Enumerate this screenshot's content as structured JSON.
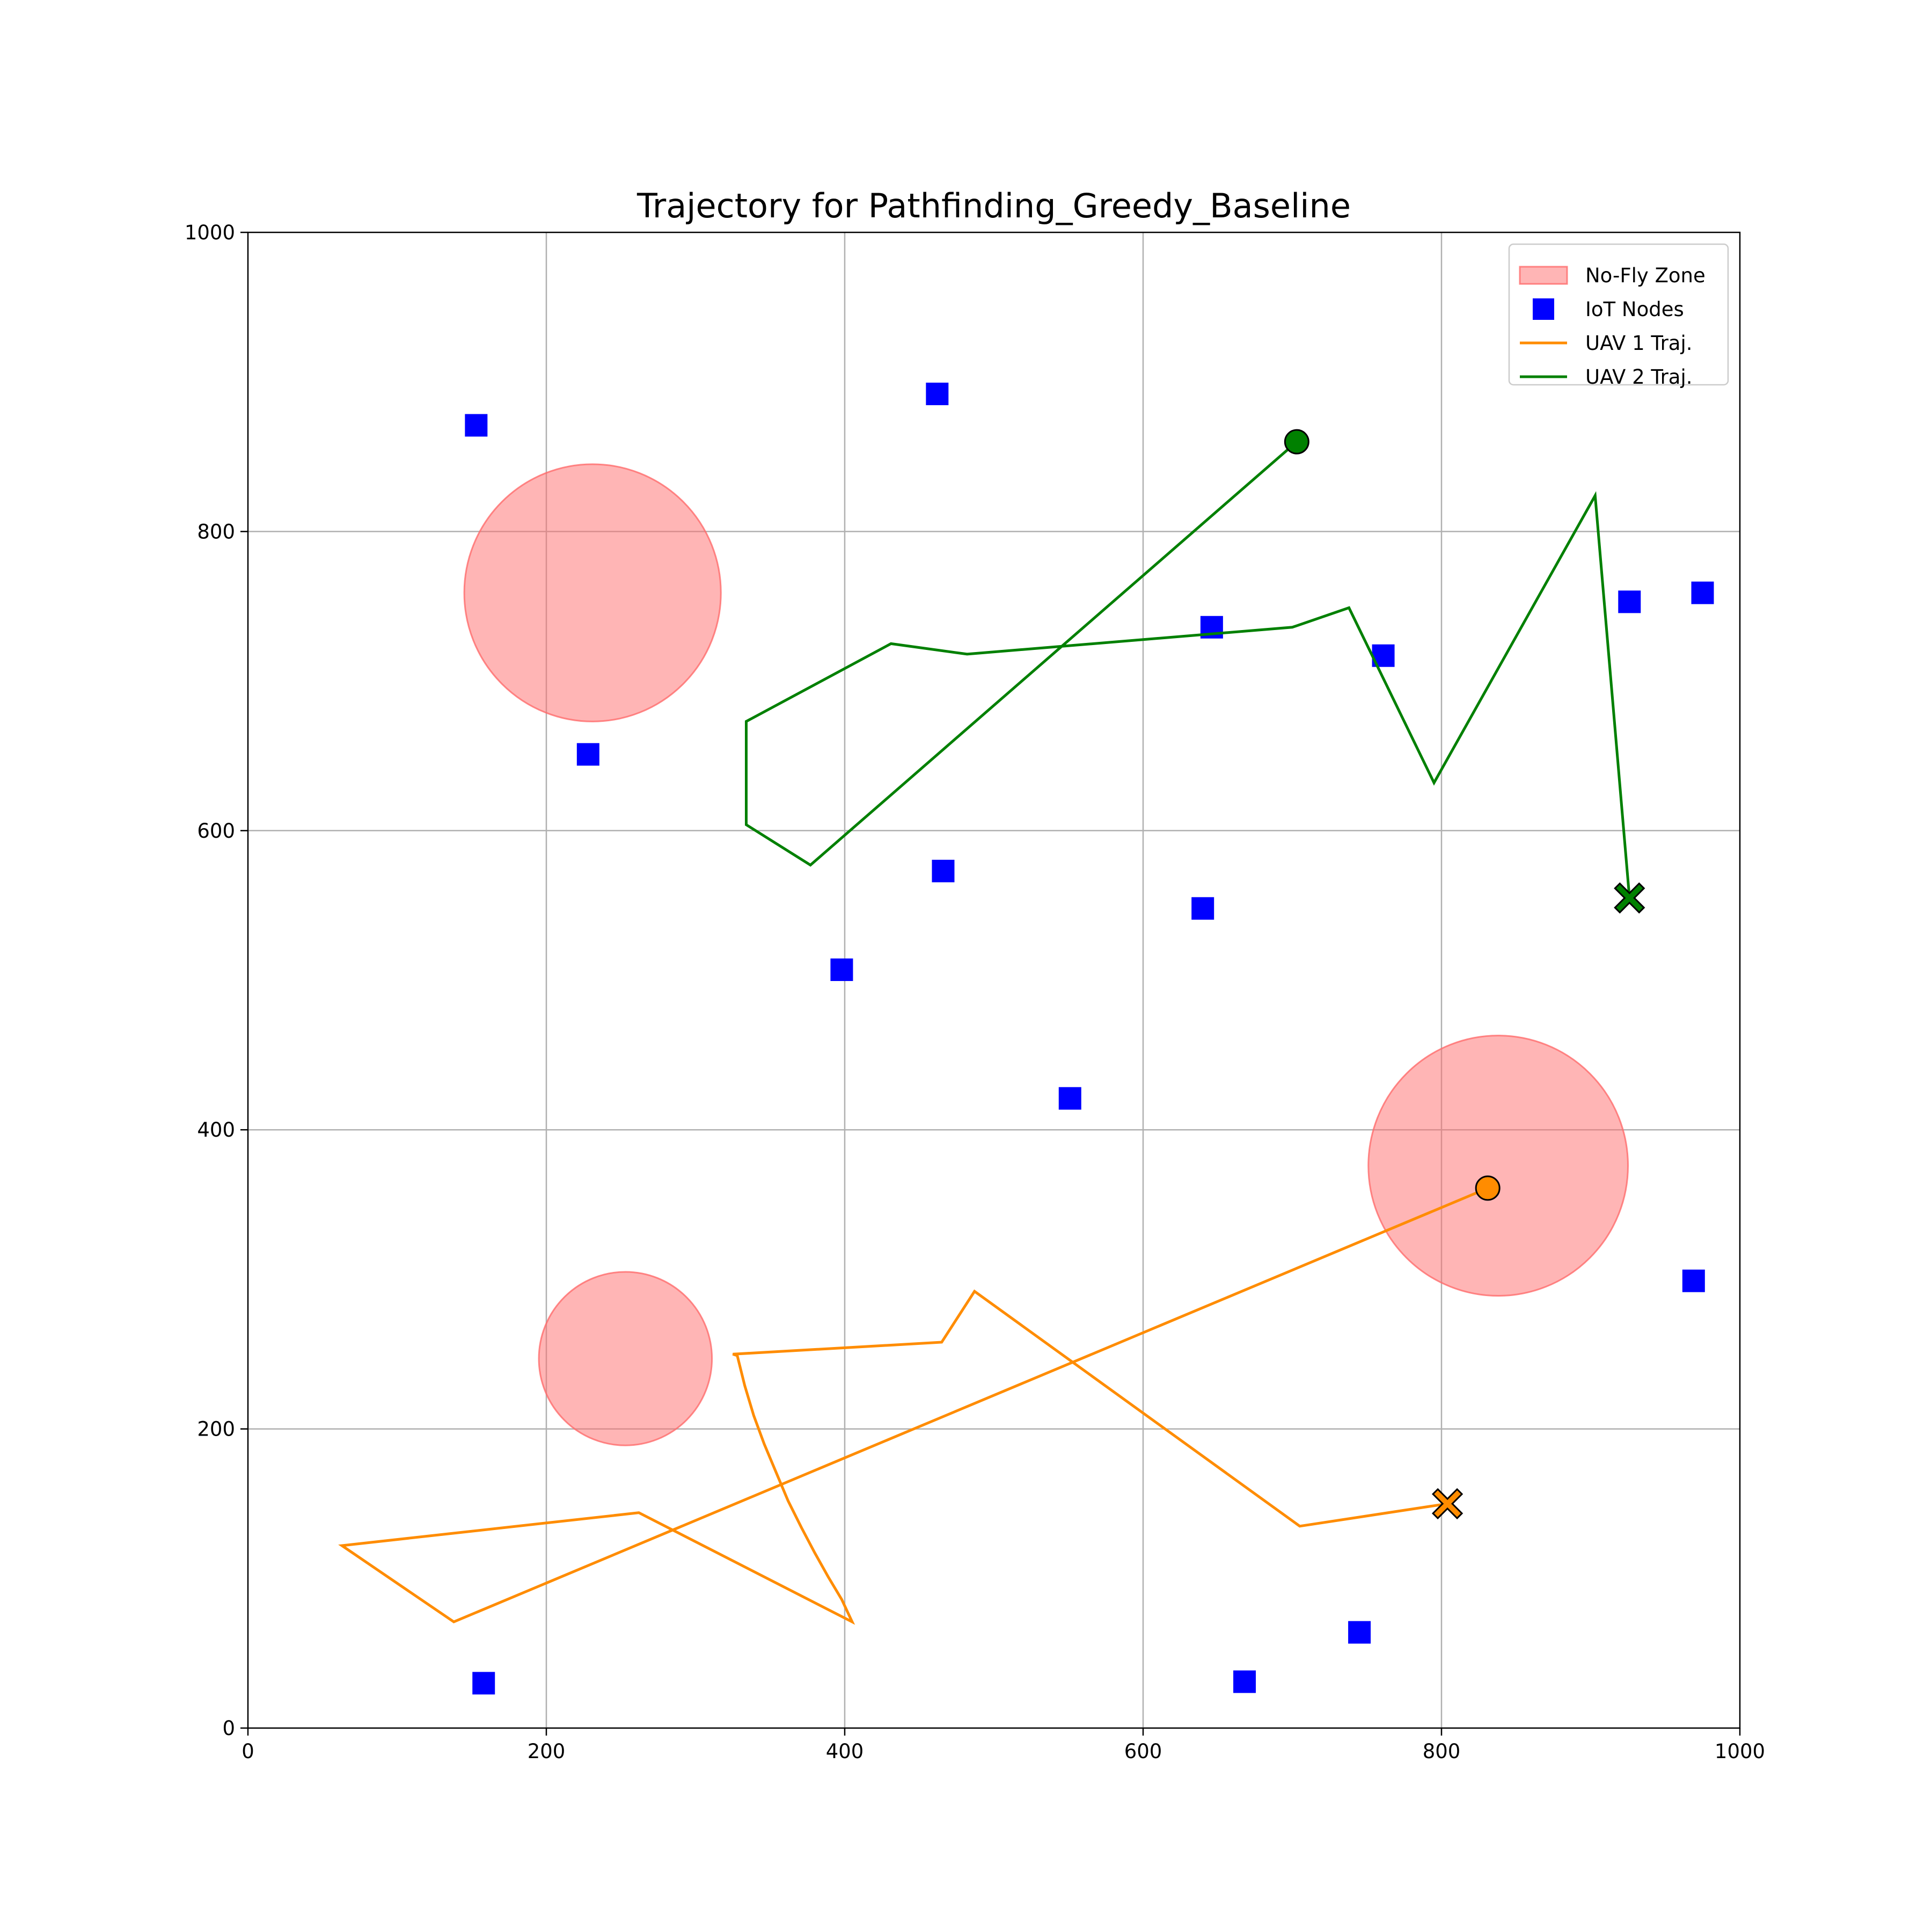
{
  "chart_data": {
    "type": "scatter",
    "title": "Trajectory for Pathfinding_Greedy_Baseline",
    "xlabel": "",
    "ylabel": "",
    "xlim": [
      0,
      1000
    ],
    "ylim": [
      0,
      1000
    ],
    "xticks": [
      0,
      200,
      400,
      600,
      800,
      1000
    ],
    "yticks": [
      0,
      200,
      400,
      600,
      800,
      1000
    ],
    "grid": true,
    "legend_position": "top-right",
    "legend": [
      {
        "label": "No-Fly Zone",
        "kind": "patch",
        "color": "#ff9999"
      },
      {
        "label": "IoT Nodes",
        "kind": "square",
        "color": "#0000ff"
      },
      {
        "label": "UAV 1 Traj.",
        "kind": "line",
        "color": "#ff8c00"
      },
      {
        "label": "UAV 2 Traj.",
        "kind": "line",
        "color": "#008000"
      }
    ],
    "no_fly_zones": [
      {
        "cx": 231,
        "cy": 759,
        "r": 86
      },
      {
        "cx": 253,
        "cy": 247,
        "r": 58
      },
      {
        "cx": 838,
        "cy": 376,
        "r": 87
      }
    ],
    "iot_nodes": [
      [
        153,
        871
      ],
      [
        462,
        892
      ],
      [
        228,
        651
      ],
      [
        646,
        736
      ],
      [
        761,
        717
      ],
      [
        926,
        753
      ],
      [
        975,
        759
      ],
      [
        466,
        573
      ],
      [
        640,
        548
      ],
      [
        398,
        507
      ],
      [
        551,
        421
      ],
      [
        969,
        299
      ],
      [
        158,
        30
      ],
      [
        668,
        31
      ],
      [
        745,
        64
      ]
    ],
    "series": [
      {
        "name": "UAV 1 Traj.",
        "color": "#ff8c00",
        "points": [
          [
            831,
            361
          ],
          [
            138,
            71
          ],
          [
            63,
            122
          ],
          [
            262,
            144
          ],
          [
            405,
            71
          ],
          [
            398,
            86
          ],
          [
            389,
            101
          ],
          [
            380,
            117
          ],
          [
            371,
            134
          ],
          [
            362,
            152
          ],
          [
            354,
            171
          ],
          [
            346,
            190
          ],
          [
            339,
            209
          ],
          [
            333,
            229
          ],
          [
            328,
            249
          ],
          [
            325,
            250
          ],
          [
            465,
            258
          ],
          [
            487,
            292
          ],
          [
            705,
            135
          ],
          [
            804,
            150
          ]
        ],
        "start": [
          831,
          361
        ],
        "end": [
          804,
          150
        ]
      },
      {
        "name": "UAV 2 Traj.",
        "color": "#008000",
        "points": [
          [
            703,
            860
          ],
          [
            377,
            577
          ],
          [
            334,
            604
          ],
          [
            334,
            673
          ],
          [
            431,
            725
          ],
          [
            482,
            718
          ],
          [
            700,
            736
          ],
          [
            738,
            749
          ],
          [
            795,
            632
          ],
          [
            903,
            824
          ],
          [
            926,
            555
          ]
        ],
        "start": [
          703,
          860
        ],
        "end": [
          926,
          555
        ]
      }
    ]
  }
}
